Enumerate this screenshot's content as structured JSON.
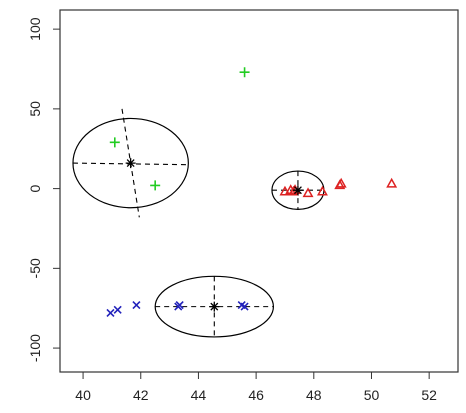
{
  "chart_data": {
    "type": "scatter",
    "title": "",
    "xlabel": "",
    "ylabel": "",
    "xlim": [
      39.2,
      53.0
    ],
    "ylim": [
      -115,
      112
    ],
    "xticks": [
      40,
      42,
      44,
      46,
      48,
      50,
      52
    ],
    "yticks": [
      -100,
      -50,
      0,
      50,
      100
    ],
    "grid": false,
    "legend": "none",
    "colors": {
      "plus": "#22cc22",
      "triangle": "#dd2222",
      "cross": "#2222bb",
      "ellipse": "#000000",
      "axis": "#333333"
    },
    "series": [
      {
        "marker": "plus",
        "points": [
          [
            45.6,
            73
          ],
          [
            41.1,
            29
          ],
          [
            42.5,
            2
          ]
        ]
      },
      {
        "marker": "triangle",
        "points": [
          [
            47.0,
            -2
          ],
          [
            47.2,
            -1
          ],
          [
            47.3,
            -2
          ],
          [
            47.35,
            -1
          ],
          [
            47.8,
            -3
          ],
          [
            48.3,
            -2
          ],
          [
            48.9,
            2
          ],
          [
            48.95,
            3
          ],
          [
            50.7,
            3
          ]
        ]
      },
      {
        "marker": "cross",
        "points": [
          [
            40.95,
            -78
          ],
          [
            41.2,
            -76
          ],
          [
            41.85,
            -73
          ],
          [
            43.3,
            -74
          ],
          [
            43.35,
            -73
          ],
          [
            45.5,
            -73
          ],
          [
            45.6,
            -74
          ]
        ]
      }
    ],
    "centers": [
      {
        "marker": "star",
        "point": [
          41.65,
          16
        ]
      },
      {
        "marker": "star",
        "point": [
          47.45,
          -1
        ]
      },
      {
        "marker": "star",
        "point": [
          44.55,
          -74
        ]
      }
    ],
    "ellipses": [
      {
        "center": [
          41.65,
          16
        ],
        "rx": 2.0,
        "ry": 28,
        "axis_a": [
          [
            41.35,
            50
          ],
          [
            41.95,
            -18
          ]
        ],
        "axis_b": [
          [
            39.65,
            16
          ],
          [
            43.65,
            15
          ]
        ]
      },
      {
        "center": [
          47.45,
          -1
        ],
        "rx": 0.9,
        "ry": 12,
        "axis_a": [
          [
            47.45,
            11
          ],
          [
            47.45,
            -13
          ]
        ],
        "axis_b": [
          [
            46.55,
            -1
          ],
          [
            48.35,
            -1
          ]
        ]
      },
      {
        "center": [
          44.55,
          -74
        ],
        "rx": 2.05,
        "ry": 19,
        "axis_a": [
          [
            44.55,
            -55
          ],
          [
            44.55,
            -93
          ]
        ],
        "axis_b": [
          [
            42.5,
            -74
          ],
          [
            46.6,
            -74
          ]
        ]
      }
    ]
  }
}
